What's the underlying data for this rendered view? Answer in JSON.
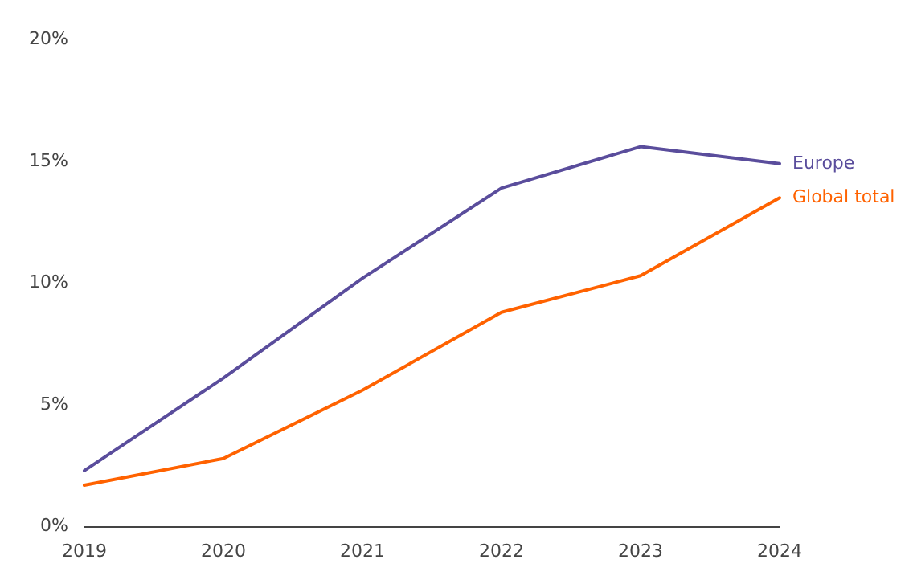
{
  "chart_data": {
    "type": "line",
    "categories": [
      "2019",
      "2020",
      "2021",
      "2022",
      "2023",
      "2024"
    ],
    "series": [
      {
        "name": "Europe",
        "color": "#5a4d9c",
        "values": [
          2.3,
          6.1,
          10.2,
          13.9,
          15.6,
          14.9
        ]
      },
      {
        "name": "Global total",
        "color": "#ff6200",
        "values": [
          1.7,
          2.8,
          5.6,
          8.8,
          10.3,
          13.5
        ]
      }
    ],
    "ylim": [
      0,
      20
    ],
    "yticks": [
      {
        "value": 0,
        "label": "0%"
      },
      {
        "value": 5,
        "label": "5%"
      },
      {
        "value": 10,
        "label": "10%"
      },
      {
        "value": 15,
        "label": "15%"
      },
      {
        "value": 20,
        "label": "20%"
      }
    ],
    "grid": false,
    "legend": false,
    "marker": "none",
    "line_style": "solid"
  }
}
